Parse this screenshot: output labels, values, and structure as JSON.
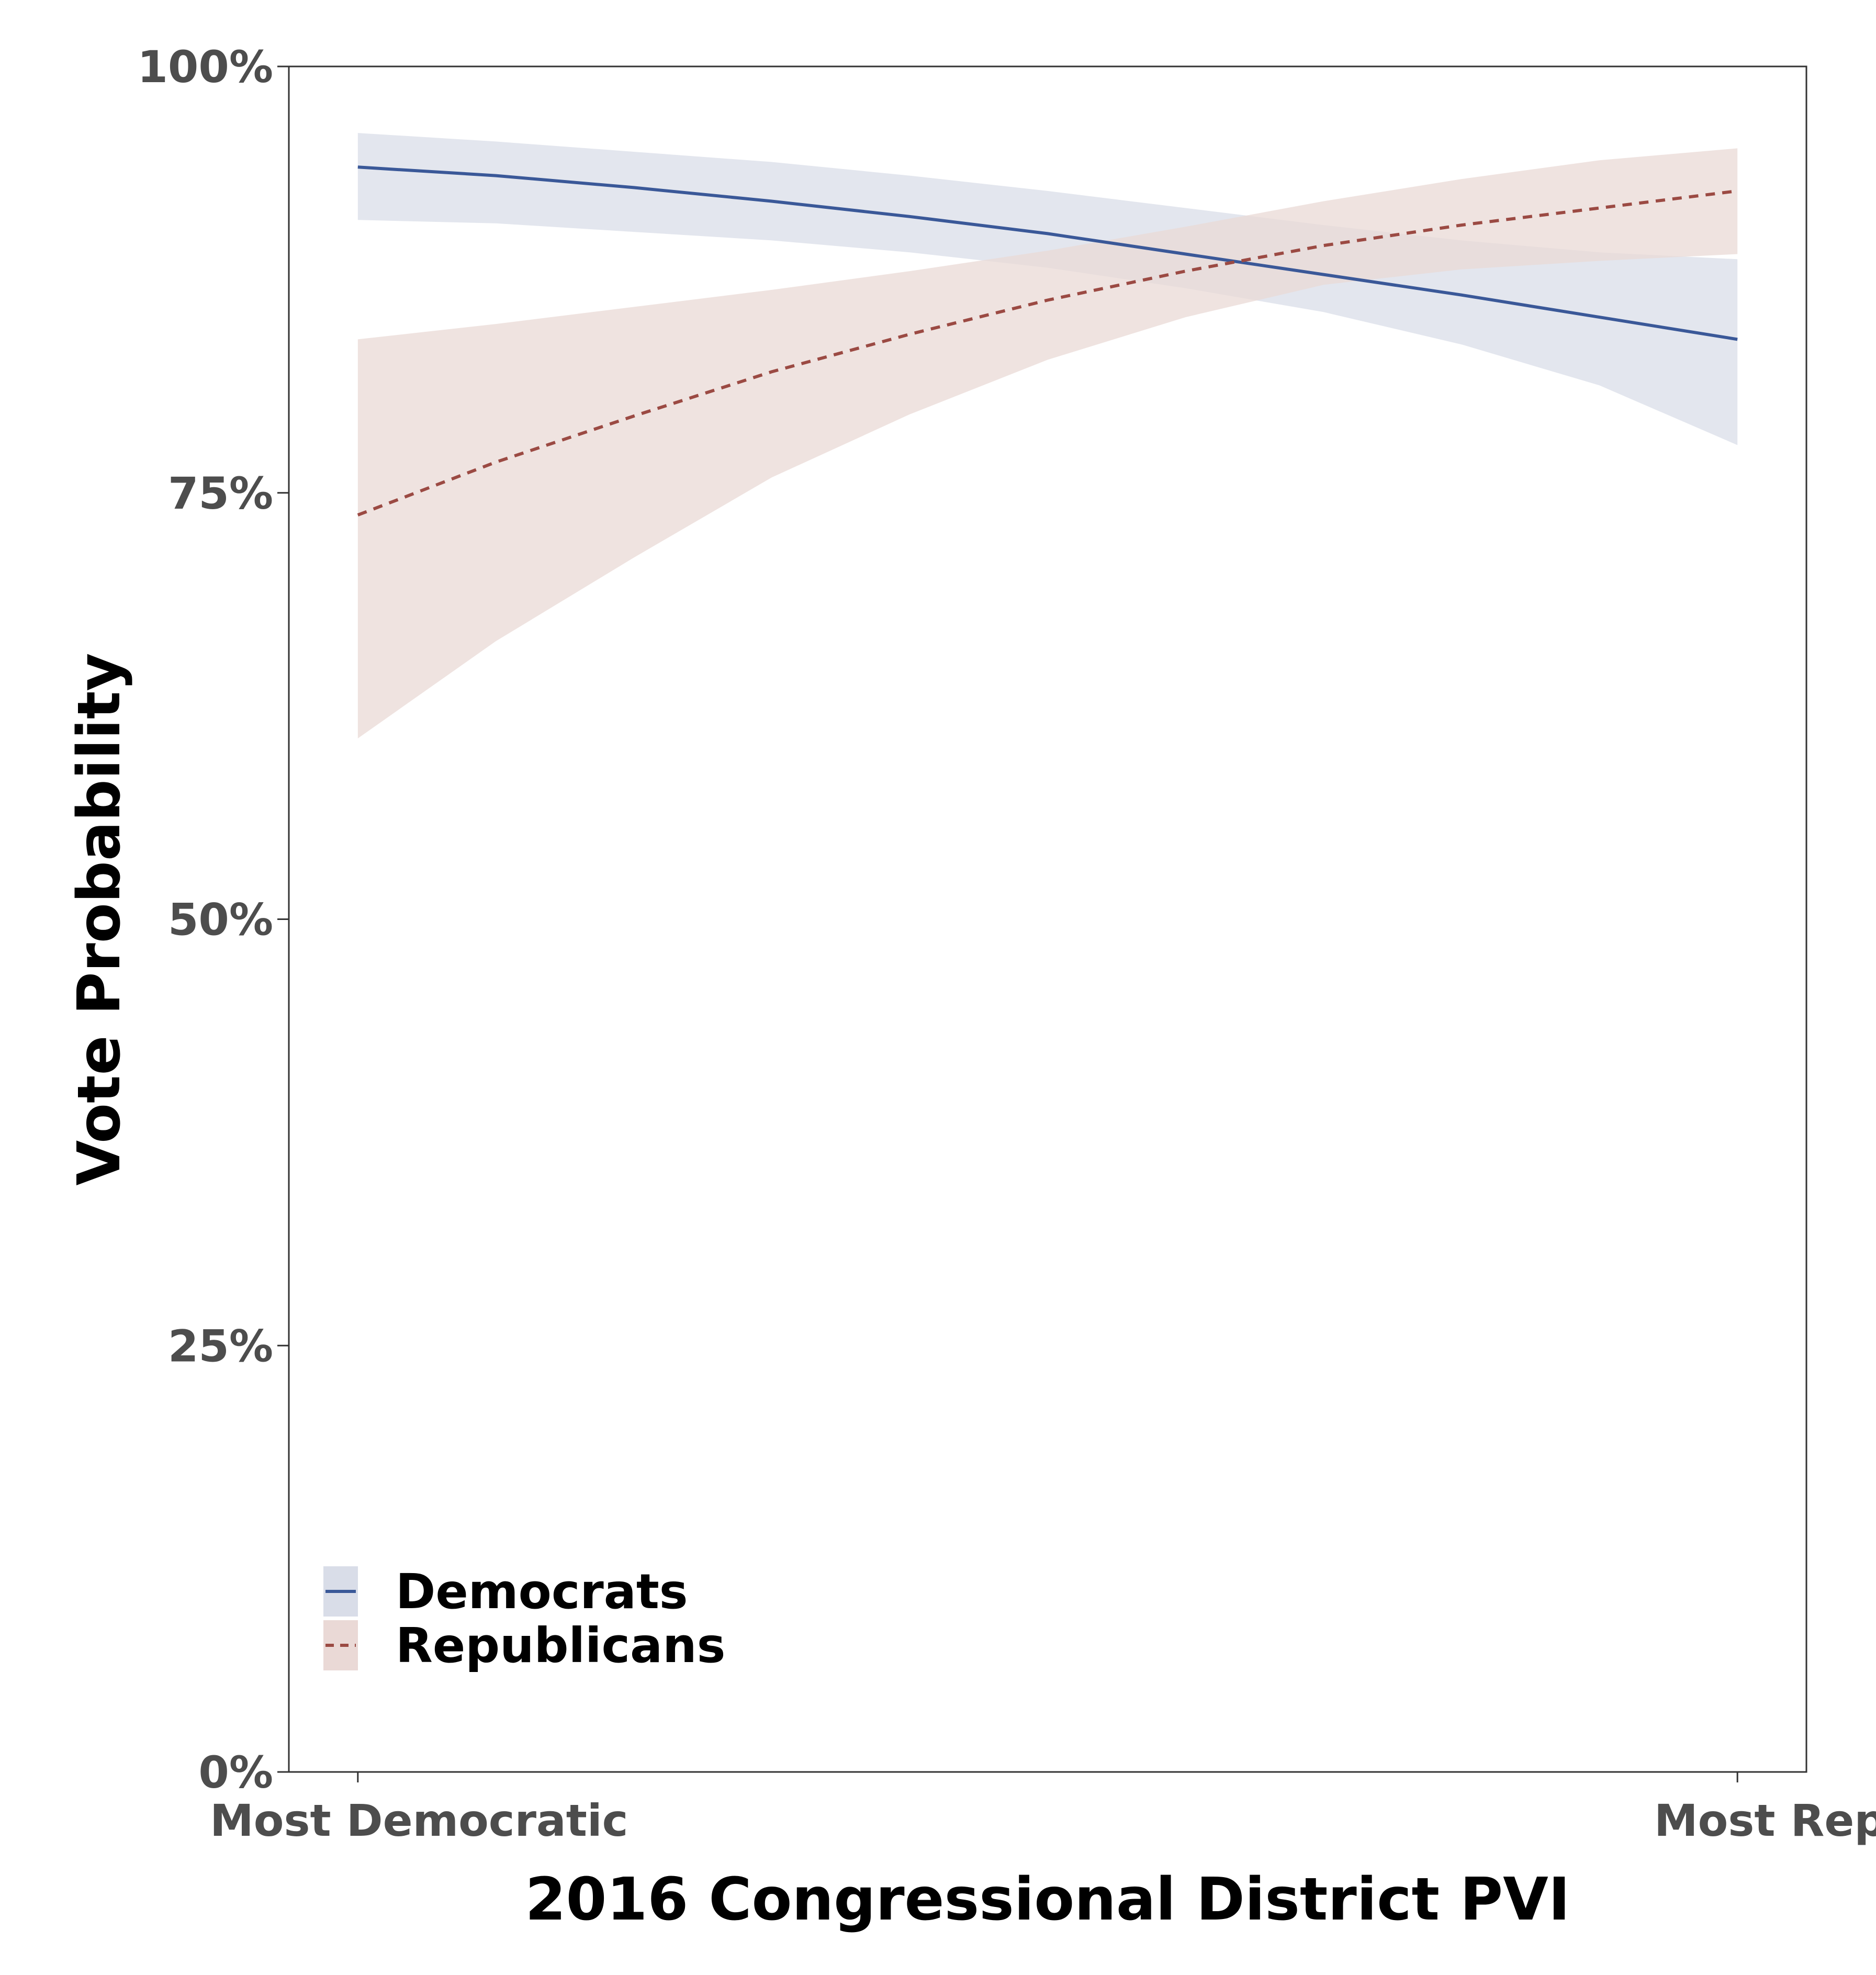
{
  "chart_data": {
    "type": "line",
    "title": "",
    "xlabel": "2016 Congressional District PVI",
    "ylabel": "Vote Probability",
    "x_tick_labels": [
      "Most Democratic",
      "Most Republican"
    ],
    "y_ticks": [
      0,
      25,
      50,
      75,
      100
    ],
    "y_tick_labels": [
      "0%",
      "25%",
      "50%",
      "75%",
      "100%"
    ],
    "ylim": [
      0,
      100
    ],
    "xlim": [
      -0.05,
      1.05
    ],
    "grid": false,
    "legend_position": "bottom-left",
    "x": [
      0,
      0.1,
      0.2,
      0.3,
      0.4,
      0.5,
      0.6,
      0.7,
      0.8,
      0.9,
      1.0
    ],
    "series": [
      {
        "name": "Democrats",
        "color": "#3a5898",
        "ribbon_color": "#d9dde8",
        "line_style": "solid",
        "values": [
          94.1,
          93.6,
          92.9,
          92.1,
          91.2,
          90.2,
          89.0,
          87.8,
          86.6,
          85.3,
          84.0
        ],
        "lower": [
          91.0,
          90.8,
          90.3,
          89.8,
          89.1,
          88.2,
          87.0,
          85.6,
          83.7,
          81.3,
          77.8
        ],
        "upper": [
          96.1,
          95.6,
          95.0,
          94.4,
          93.6,
          92.7,
          91.7,
          90.7,
          89.8,
          89.1,
          88.7
        ]
      },
      {
        "name": "Republicans",
        "color": "#9b4a43",
        "ribbon_color": "#ead9d6",
        "line_style": "dashed",
        "values": [
          73.7,
          76.8,
          79.5,
          82.1,
          84.3,
          86.3,
          88.0,
          89.5,
          90.7,
          91.7,
          92.7
        ],
        "lower": [
          60.6,
          66.3,
          71.2,
          75.9,
          79.6,
          82.8,
          85.3,
          87.2,
          88.1,
          88.6,
          89.0
        ],
        "upper": [
          84.0,
          84.9,
          85.9,
          86.9,
          88.0,
          89.2,
          90.6,
          92.1,
          93.4,
          94.5,
          95.2
        ]
      }
    ]
  }
}
